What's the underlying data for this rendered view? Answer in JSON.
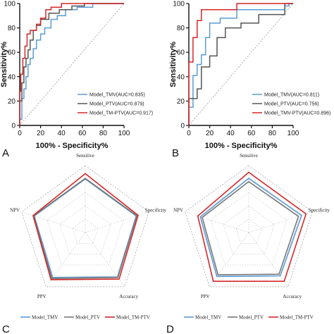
{
  "chart_data": [
    {
      "id": "A",
      "type": "line",
      "panel_label": "A",
      "xlabel": "100% - Specificity%",
      "ylabel": "Sensitivity%",
      "xlim": [
        0,
        100
      ],
      "ylim": [
        0,
        100
      ],
      "xticks": [
        "0",
        "20",
        "40",
        "60",
        "80",
        "100"
      ],
      "yticks": [
        "0",
        "20",
        "40",
        "60",
        "80",
        "100"
      ],
      "legend_position": "bottom-right",
      "series": [
        {
          "name": "Model_TMV(AUC=0.835)",
          "color": "#5b9bd5",
          "points": [
            [
              0,
              0
            ],
            [
              0,
              5
            ],
            [
              2,
              5
            ],
            [
              2,
              22
            ],
            [
              4,
              22
            ],
            [
              4,
              30
            ],
            [
              6,
              30
            ],
            [
              6,
              40
            ],
            [
              8,
              40
            ],
            [
              8,
              50
            ],
            [
              10,
              50
            ],
            [
              10,
              55
            ],
            [
              13,
              55
            ],
            [
              13,
              63
            ],
            [
              16,
              63
            ],
            [
              16,
              70
            ],
            [
              20,
              70
            ],
            [
              20,
              75
            ],
            [
              24,
              75
            ],
            [
              24,
              80
            ],
            [
              30,
              80
            ],
            [
              30,
              87
            ],
            [
              36,
              87
            ],
            [
              36,
              90
            ],
            [
              44,
              90
            ],
            [
              44,
              95
            ],
            [
              55,
              95
            ],
            [
              55,
              97
            ],
            [
              70,
              97
            ],
            [
              70,
              100
            ],
            [
              100,
              100
            ]
          ]
        },
        {
          "name": "Model_PTV(AUC=0.879)",
          "color": "#555555",
          "points": [
            [
              0,
              0
            ],
            [
              0,
              20
            ],
            [
              2,
              20
            ],
            [
              2,
              35
            ],
            [
              4,
              35
            ],
            [
              4,
              48
            ],
            [
              6,
              48
            ],
            [
              6,
              55
            ],
            [
              8,
              55
            ],
            [
              8,
              62
            ],
            [
              10,
              62
            ],
            [
              10,
              70
            ],
            [
              13,
              70
            ],
            [
              13,
              78
            ],
            [
              16,
              78
            ],
            [
              16,
              82
            ],
            [
              20,
              82
            ],
            [
              20,
              87
            ],
            [
              28,
              87
            ],
            [
              28,
              92
            ],
            [
              38,
              92
            ],
            [
              38,
              95
            ],
            [
              50,
              95
            ],
            [
              50,
              98
            ],
            [
              62,
              98
            ],
            [
              62,
              100
            ],
            [
              100,
              100
            ]
          ]
        },
        {
          "name": "Model_TM-PTV(AUC=0.917)",
          "color": "#d62728",
          "points": [
            [
              0,
              0
            ],
            [
              0,
              28
            ],
            [
              1,
              28
            ],
            [
              1,
              42
            ],
            [
              3,
              42
            ],
            [
              3,
              55
            ],
            [
              5,
              55
            ],
            [
              5,
              65
            ],
            [
              7,
              65
            ],
            [
              7,
              75
            ],
            [
              10,
              75
            ],
            [
              10,
              78
            ],
            [
              16,
              78
            ],
            [
              16,
              83
            ],
            [
              20,
              83
            ],
            [
              20,
              88
            ],
            [
              25,
              88
            ],
            [
              25,
              95
            ],
            [
              30,
              95
            ],
            [
              30,
              97
            ],
            [
              40,
              97
            ],
            [
              40,
              100
            ],
            [
              100,
              100
            ]
          ]
        }
      ],
      "reference_line": true
    },
    {
      "id": "B",
      "type": "line",
      "panel_label": "B",
      "xlabel": "100% - Specificity%",
      "ylabel": "Sensitivity%",
      "xlim": [
        0,
        100
      ],
      "ylim": [
        0,
        100
      ],
      "xticks": [
        "0",
        "20",
        "40",
        "60",
        "80",
        "100"
      ],
      "yticks": [
        "0",
        "20",
        "40",
        "60",
        "80",
        "100"
      ],
      "legend_position": "bottom-right",
      "series": [
        {
          "name": "Model_TMV(AUC=0.811)",
          "color": "#5b9bd5",
          "points": [
            [
              0,
              0
            ],
            [
              0,
              15
            ],
            [
              4,
              15
            ],
            [
              4,
              41
            ],
            [
              8,
              41
            ],
            [
              8,
              50
            ],
            [
              12,
              50
            ],
            [
              12,
              58
            ],
            [
              16,
              58
            ],
            [
              16,
              72
            ],
            [
              20,
              72
            ],
            [
              20,
              84
            ],
            [
              30,
              84
            ],
            [
              30,
              88
            ],
            [
              46,
              88
            ],
            [
              46,
              95
            ],
            [
              92,
              95
            ],
            [
              92,
              98
            ],
            [
              96,
              98
            ],
            [
              96,
              100
            ],
            [
              100,
              100
            ]
          ]
        },
        {
          "name": "Model_PTV(AUC=0.756)",
          "color": "#555555",
          "points": [
            [
              0,
              0
            ],
            [
              0,
              22
            ],
            [
              8,
              22
            ],
            [
              8,
              30
            ],
            [
              12,
              30
            ],
            [
              12,
              48
            ],
            [
              20,
              48
            ],
            [
              20,
              57
            ],
            [
              27,
              57
            ],
            [
              27,
              72
            ],
            [
              35,
              72
            ],
            [
              35,
              80
            ],
            [
              50,
              80
            ],
            [
              50,
              84
            ],
            [
              67,
              84
            ],
            [
              67,
              91
            ],
            [
              92,
              91
            ],
            [
              92,
              100
            ],
            [
              100,
              100
            ]
          ]
        },
        {
          "name": "Model_TMV-PTV(AUC=0.896)",
          "color": "#d62728",
          "points": [
            [
              0,
              0
            ],
            [
              0,
              52
            ],
            [
              4,
              52
            ],
            [
              4,
              72
            ],
            [
              8,
              72
            ],
            [
              8,
              86
            ],
            [
              12,
              86
            ],
            [
              12,
              95
            ],
            [
              46,
              95
            ],
            [
              46,
              100
            ],
            [
              100,
              100
            ]
          ]
        }
      ],
      "reference_line": true
    },
    {
      "id": "C",
      "type": "radar",
      "panel_label": "C",
      "axes": [
        "Sensitive",
        "Specificity",
        "Accuracy",
        "PPV",
        "NPV"
      ],
      "rmax": 1.0,
      "rings": 5,
      "series": [
        {
          "name": "Model_TMV",
          "color": "#5b9bd5",
          "values": [
            0.8,
            0.8,
            0.82,
            0.83,
            0.8
          ]
        },
        {
          "name": "Model_PTV",
          "color": "#777777",
          "values": [
            0.81,
            0.81,
            0.83,
            0.85,
            0.81
          ]
        },
        {
          "name": "Model_TM-PTV",
          "color": "#d62728",
          "values": [
            0.88,
            0.83,
            0.86,
            0.87,
            0.82
          ]
        }
      ]
    },
    {
      "id": "D",
      "type": "radar",
      "panel_label": "D",
      "axes": [
        "Sensitive",
        "Specificity",
        "Accuracy",
        "PPV",
        "NPV"
      ],
      "rmax": 1.0,
      "rings": 5,
      "series": [
        {
          "name": "Model_TMV",
          "color": "#5b9bd5",
          "values": [
            0.81,
            0.83,
            0.8,
            0.81,
            0.76
          ]
        },
        {
          "name": "Model_PTV",
          "color": "#777777",
          "values": [
            0.76,
            0.78,
            0.77,
            0.78,
            0.73
          ]
        },
        {
          "name": "Model_TM-PTV",
          "color": "#d62728",
          "values": [
            0.9,
            0.9,
            0.9,
            0.9,
            0.8
          ]
        }
      ]
    }
  ]
}
